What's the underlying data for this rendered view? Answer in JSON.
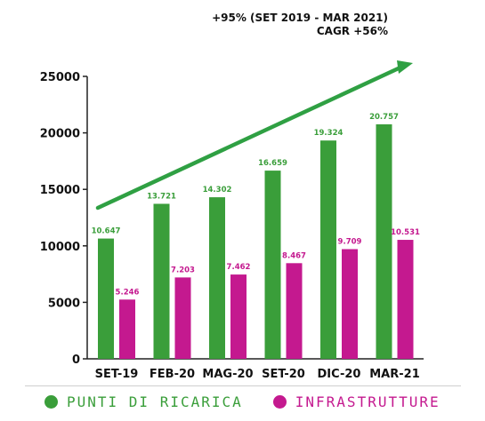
{
  "annotations": {
    "growth": "+95%  (SET 2019 - MAR 2021)",
    "cagr": "CAGR +56%"
  },
  "colors": {
    "punti": "#3a9e3a",
    "infra": "#c4198f",
    "arrow": "#2fa043",
    "axis": "#222222"
  },
  "chart_data": {
    "type": "bar",
    "categories": [
      "SET-19",
      "FEB-20",
      "MAG-20",
      "SET-20",
      "DIC-20",
      "MAR-21"
    ],
    "series": [
      {
        "name": "PUNTI DI RICARICA",
        "values": [
          10647,
          13721,
          14302,
          16659,
          19324,
          20757
        ],
        "labels": [
          "10.647",
          "13.721",
          "14.302",
          "16.659",
          "19.324",
          "20.757"
        ]
      },
      {
        "name": "INFRASTRUTTURE",
        "values": [
          5246,
          7203,
          7462,
          8467,
          9709,
          10531
        ],
        "labels": [
          "5.246",
          "7.203",
          "7.462",
          "8.467",
          "9.709",
          "10.531"
        ]
      }
    ],
    "yticks": [
      0,
      5000,
      10000,
      15000,
      20000,
      25000
    ],
    "ylim": [
      0,
      25000
    ],
    "legend_position": "bottom",
    "grid": false
  }
}
